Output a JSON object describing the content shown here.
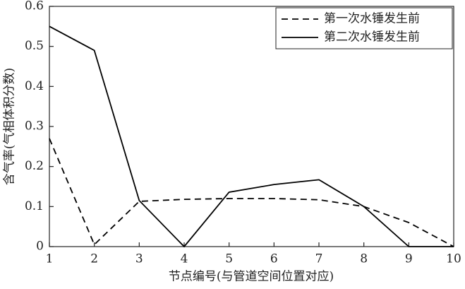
{
  "chart_data": {
    "type": "line",
    "x_label": "节点编号(与管道空间位置对应)",
    "y_label": "含气率(气相体积分数)",
    "x": [
      1,
      2,
      3,
      4,
      5,
      6,
      7,
      8,
      9,
      10
    ],
    "series": [
      {
        "name": "第一次水锤发生前",
        "color": "#000000",
        "line_style": "dashed",
        "values": [
          0.27,
          0.005,
          0.113,
          0.118,
          0.12,
          0.12,
          0.117,
          0.1,
          0.06,
          0
        ]
      },
      {
        "name": "第二次水锤发生前",
        "color": "#000000",
        "line_style": "solid",
        "values": [
          0.55,
          0.49,
          0.115,
          0,
          0.136,
          0.155,
          0.167,
          0.1,
          0,
          0
        ]
      }
    ],
    "xlim": [
      1,
      10
    ],
    "xticks": [
      1,
      2,
      3,
      4,
      5,
      6,
      7,
      8,
      9,
      10
    ],
    "ylim": [
      0,
      0.6
    ],
    "yticks": [
      0,
      0.1,
      0.2,
      0.3,
      0.4,
      0.5,
      0.6
    ],
    "grid": false,
    "legend": "upper right"
  }
}
